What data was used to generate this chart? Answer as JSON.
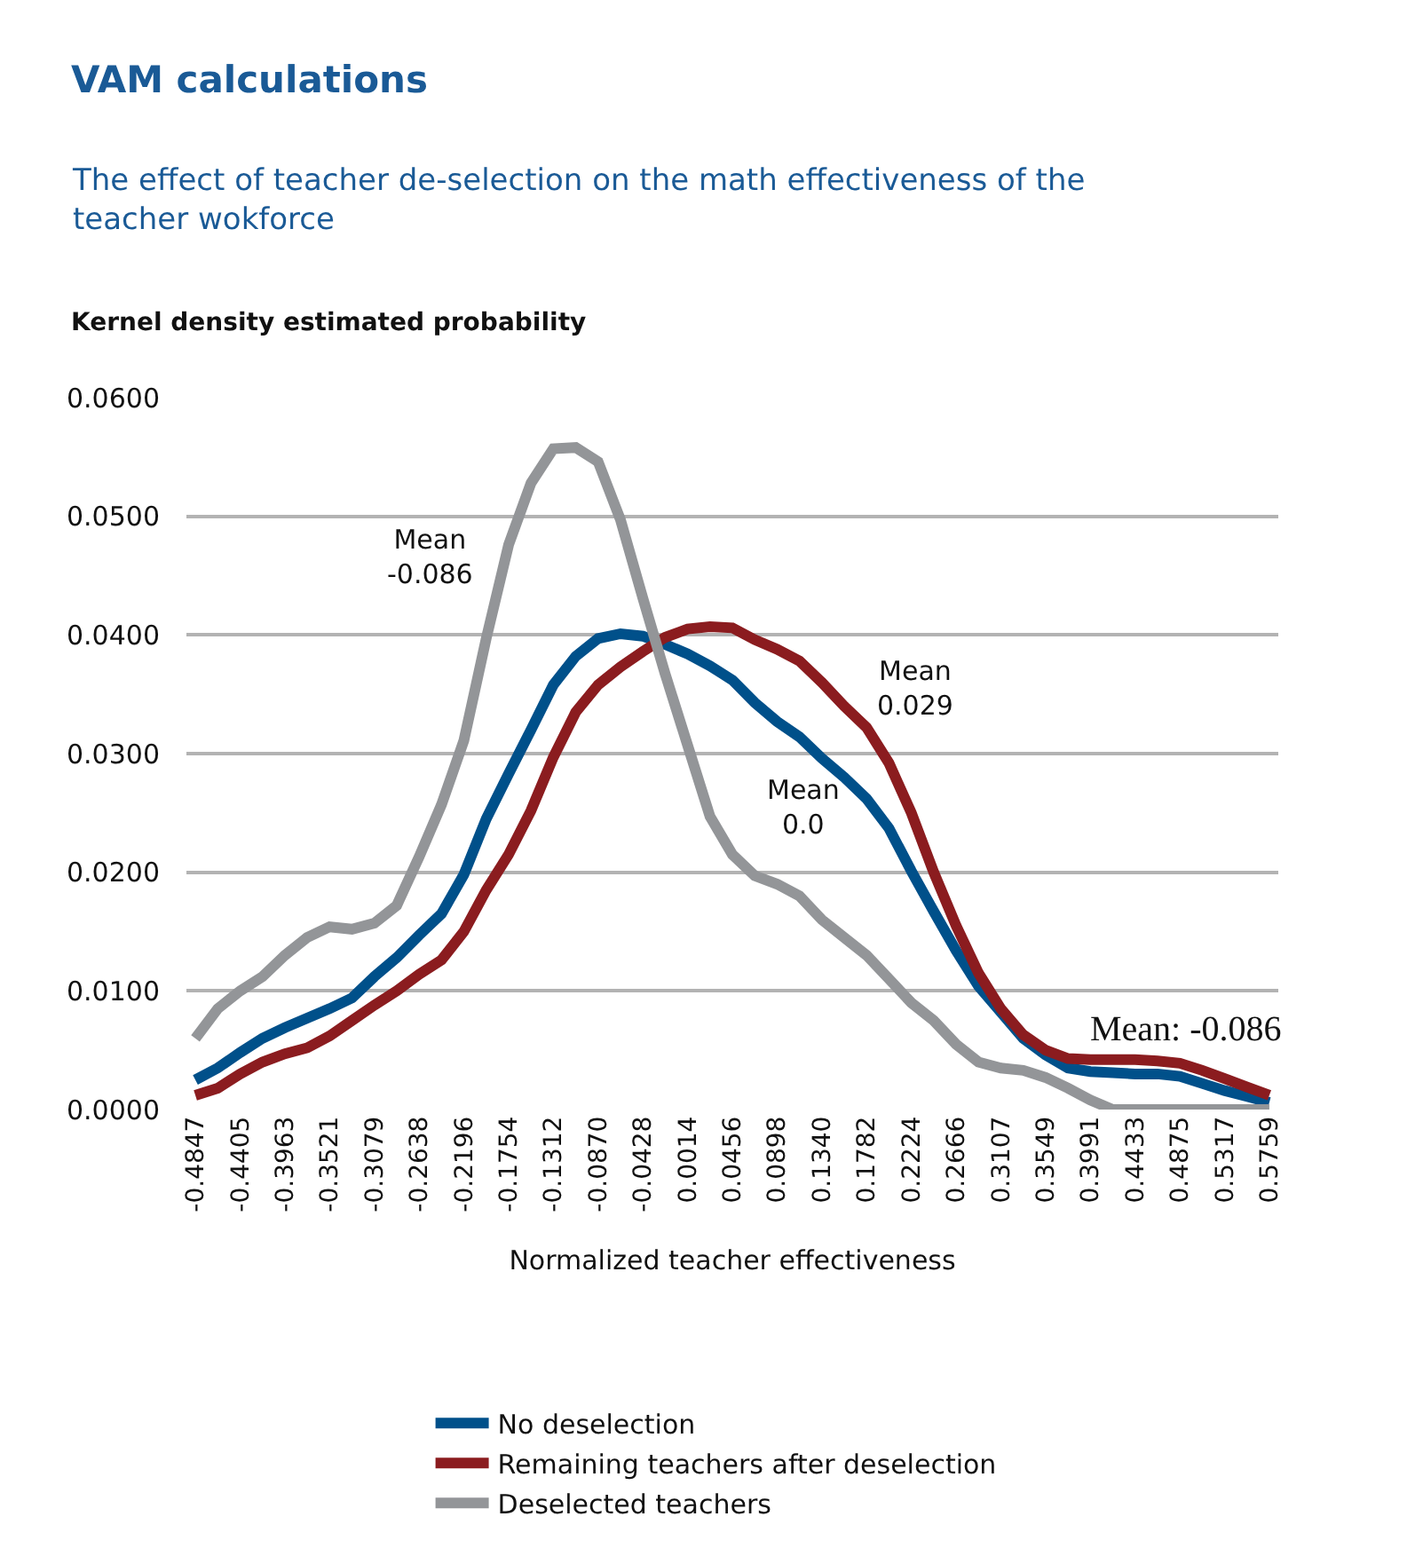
{
  "chart_data": {
    "type": "line",
    "title": "VAM calculations",
    "subtitle": "The effect of teacher de-selection on the math effectiveness of the teacher wokforce",
    "ylabel": "Kernel density estimated probability",
    "xlabel": "Normalized teacher effectiveness",
    "categories": [
      "-0.4847",
      null,
      "-0.4405",
      null,
      "-0.3963",
      null,
      "-0.3521",
      null,
      "-0.3079",
      null,
      "-0.2638",
      null,
      "-0.2196",
      null,
      "-0.1754",
      null,
      "-0.1312",
      null,
      "-0.0870",
      null,
      "-0.0428",
      null,
      "0.0014",
      null,
      "0.0456",
      null,
      "0.0898",
      null,
      "0.1340",
      null,
      "0.1782",
      null,
      "0.2224",
      null,
      "0.2666",
      null,
      "0.3107",
      null,
      "0.3549",
      null,
      "0.3991",
      null,
      "0.4433",
      null,
      "0.4875",
      null,
      "0.5317",
      null,
      "0.5759"
    ],
    "series": [
      {
        "name": "No deselection",
        "color": "#00508a",
        "values": [
          0.0025,
          0.0035,
          0.0048,
          0.006,
          0.0069,
          0.0077,
          0.0085,
          0.0094,
          0.0112,
          0.0128,
          0.0147,
          0.0165,
          0.0198,
          0.0245,
          0.0283,
          0.032,
          0.0358,
          0.0382,
          0.0397,
          0.0401,
          0.0399,
          0.0392,
          0.0384,
          0.0374,
          0.0362,
          0.0343,
          0.0327,
          0.0314,
          0.0296,
          0.028,
          0.0262,
          0.0237,
          0.0201,
          0.0167,
          0.0134,
          0.0104,
          0.0082,
          0.006,
          0.0046,
          0.0035,
          0.0032,
          0.0031,
          0.003,
          0.003,
          0.0028,
          0.0022,
          0.0016,
          0.0011,
          0.0006
        ]
      },
      {
        "name": "Remaining teachers after deselection",
        "color": "#8b1c1f",
        "values": [
          0.0012,
          0.0018,
          0.003,
          0.004,
          0.0047,
          0.0052,
          0.0062,
          0.0075,
          0.0088,
          0.01,
          0.0114,
          0.0126,
          0.015,
          0.0185,
          0.0215,
          0.0252,
          0.0297,
          0.0335,
          0.0358,
          0.0373,
          0.0386,
          0.0398,
          0.0405,
          0.0407,
          0.0406,
          0.0396,
          0.0388,
          0.0378,
          0.036,
          0.034,
          0.0322,
          0.0292,
          0.025,
          0.02,
          0.0155,
          0.0115,
          0.0085,
          0.0063,
          0.005,
          0.0043,
          0.0042,
          0.0042,
          0.0042,
          0.0041,
          0.0039,
          0.0033,
          0.0026,
          0.0019,
          0.0012
        ]
      },
      {
        "name": "Deselected teachers",
        "color": "#939598",
        "values": [
          0.006,
          0.0085,
          0.01,
          0.0112,
          0.013,
          0.0145,
          0.0154,
          0.0152,
          0.0157,
          0.0172,
          0.0213,
          0.0257,
          0.0311,
          0.0397,
          0.0476,
          0.0528,
          0.0557,
          0.0558,
          0.0546,
          0.0497,
          0.0431,
          0.0367,
          0.0307,
          0.0247,
          0.0215,
          0.0197,
          0.019,
          0.018,
          0.016,
          0.0145,
          0.013,
          0.011,
          0.009,
          0.0075,
          0.0055,
          0.004,
          0.0035,
          0.0033,
          0.0027,
          0.0018,
          0.0008,
          0.0,
          0.0,
          0.0,
          0.0,
          0.0,
          0.0,
          0.0,
          0.0
        ]
      }
    ],
    "ylim": [
      0,
      0.06
    ],
    "yticks": [
      {
        "value": 0,
        "label": "0.0000"
      },
      {
        "value": 0.01,
        "label": "0.0100"
      },
      {
        "value": 0.02,
        "label": "0.0200"
      },
      {
        "value": 0.03,
        "label": "0.0300"
      },
      {
        "value": 0.04,
        "label": "0.0400"
      },
      {
        "value": 0.05,
        "label": "0.0500"
      },
      {
        "value": 0.06,
        "label": "0.0600"
      }
    ],
    "grid": "y",
    "legend": "bottom",
    "marker": "none",
    "line_style": "solid",
    "annotations": [
      "Mean\n-0.086",
      "Mean\n0.029",
      "Mean\n0.0",
      "Mean: -0.086"
    ]
  }
}
